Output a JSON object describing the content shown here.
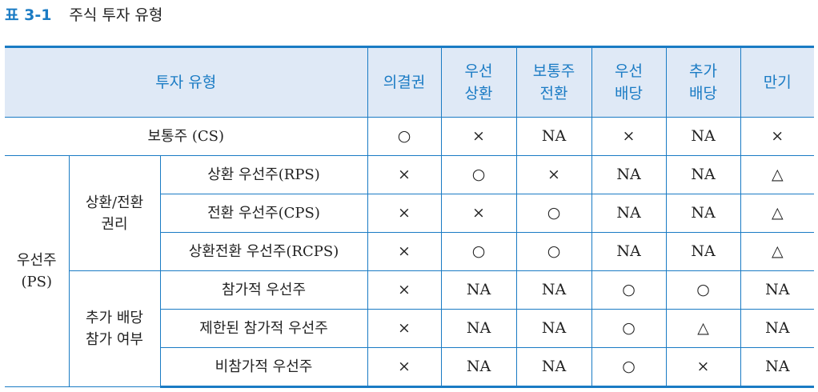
{
  "title": {
    "number": "표 3-1",
    "text": "주식 투자 유형"
  },
  "colors": {
    "accent": "#1a7bc4",
    "header_bg": "#dfe9f6"
  },
  "headers": [
    "투자 유형",
    "의결권",
    "우선\n상환",
    "보통주\n전환",
    "우선\n배당",
    "추가\n배당",
    "만기"
  ],
  "common": {
    "label": "보통주 (CS)",
    "values": [
      "○",
      "×",
      "NA",
      "×",
      "NA",
      "×"
    ]
  },
  "preferred": {
    "label": "우선주\n(PS)",
    "groups": [
      {
        "label": "상환/전환\n권리",
        "rows": [
          {
            "label": "상환 우선주(RPS)",
            "values": [
              "×",
              "○",
              "×",
              "NA",
              "NA",
              "△"
            ]
          },
          {
            "label": "전환 우선주(CPS)",
            "values": [
              "×",
              "×",
              "○",
              "NA",
              "NA",
              "△"
            ]
          },
          {
            "label": "상환전환 우선주(RCPS)",
            "values": [
              "×",
              "○",
              "○",
              "NA",
              "NA",
              "△"
            ]
          }
        ]
      },
      {
        "label": "추가 배당\n참가 여부",
        "rows": [
          {
            "label": "참가적 우선주",
            "values": [
              "×",
              "NA",
              "NA",
              "○",
              "○",
              "NA"
            ]
          },
          {
            "label": "제한된 참가적 우선주",
            "values": [
              "×",
              "NA",
              "NA",
              "○",
              "△",
              "NA"
            ]
          },
          {
            "label": "비참가적 우선주",
            "values": [
              "×",
              "NA",
              "NA",
              "○",
              "×",
              "NA"
            ]
          }
        ]
      }
    ]
  }
}
